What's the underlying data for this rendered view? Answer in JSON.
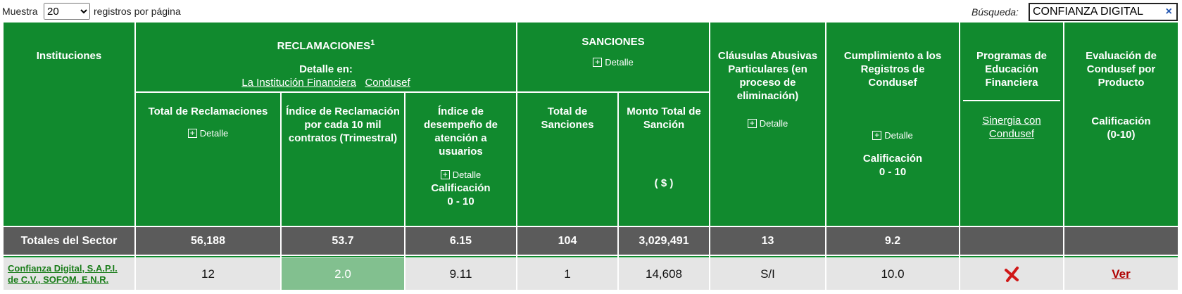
{
  "controls": {
    "show_label": "Muestra",
    "page_size": "20",
    "per_page_label": "registros por página",
    "search_label": "Búsqueda:",
    "search_value": "CONFIANZA DIGITAL",
    "clear": "×"
  },
  "header": {
    "institutions": "Instituciones",
    "claims": "RECLAMACIONES",
    "claims_note": "1",
    "detail_in": "Detalle en:",
    "link_institution": "La Institución Financiera",
    "link_condusef": "Condusef",
    "sanctions": "SANCIONES",
    "detail": "Detalle",
    "clauses": "Cláusulas Abusivas Particulares (en proceso de eliminación)",
    "compliance": "Cumplimiento a los Registros de Condusef",
    "compliance_rating": "Calificación",
    "compliance_scale": "0 - 10",
    "programs": "Programas de Educación Financiera",
    "programs_link": "Sinergia con Condusef",
    "evaluation": "Evaluación de Condusef por Producto",
    "evaluation_rating": "Calificación",
    "evaluation_scale": "(0-10)",
    "total_claims": "Total de Reclamaciones",
    "claims_index": "Índice de Reclamación por cada 10 mil contratos (Trimestral)",
    "performance_index": "Índice de desempeño de atención a usuarios",
    "performance_rating": "Calificación",
    "performance_scale": "0 - 10",
    "total_sanctions": "Total de Sanciones",
    "sanction_amount": "Monto Total de Sanción",
    "sanction_unit": "( $ )"
  },
  "totals": [
    "Totales del Sector",
    "56,188",
    "53.7",
    "6.15",
    "104",
    "3,029,491",
    "13",
    "9.2"
  ],
  "rows": [
    [
      "Confianza Digital, S.A.P.I. de C.V., SOFOM, E.N.R.",
      "12",
      "2.0",
      "9.11",
      "1",
      "14,608",
      "S/I",
      "10.0",
      "Ver"
    ]
  ]
}
